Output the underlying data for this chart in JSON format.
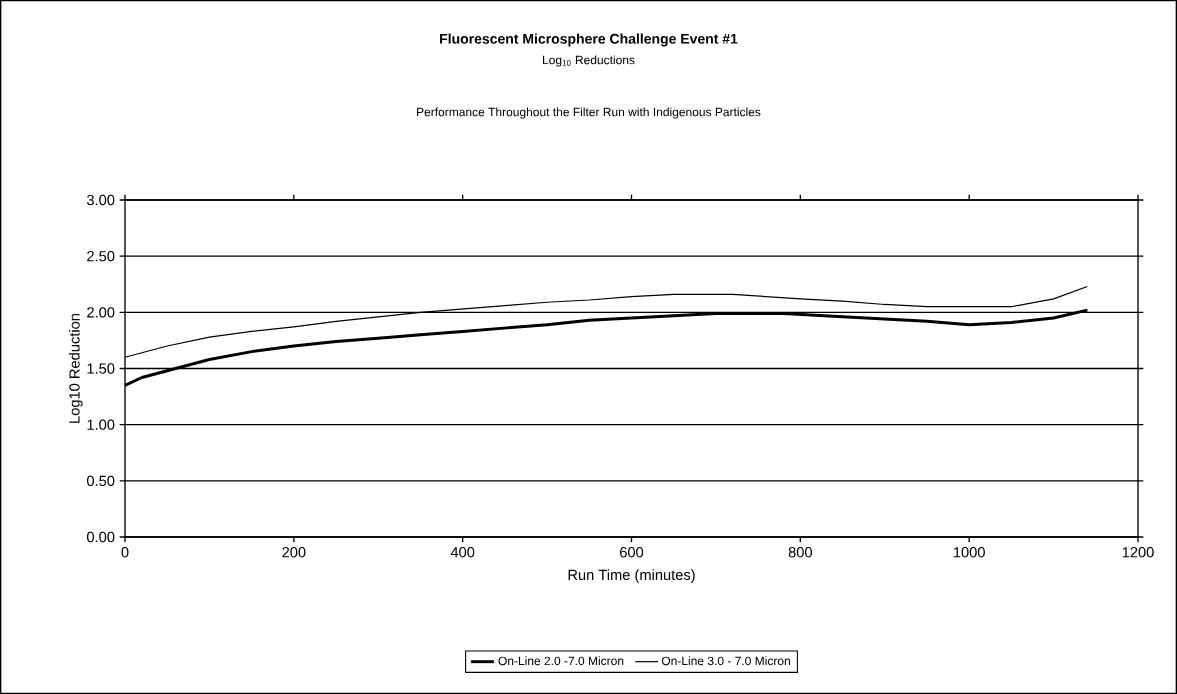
{
  "chart_data": {
    "type": "line",
    "title": "Fluorescent Microsphere Challenge Event #1",
    "subtitle": "Log$_{10}$ Reductions",
    "annotations": [
      "Performance Throughout the Filter Run with Indigenous Particles"
    ],
    "xlabel": "Run Time (minutes)",
    "ylabel": "Log10 Reduction",
    "series": [
      {
        "name": "On-Line 2.0 -7.0 Micron",
        "color": "#000000",
        "x": [
          0,
          20,
          50,
          100,
          150,
          200,
          250,
          300,
          350,
          400,
          450,
          500,
          550,
          600,
          650,
          700,
          780,
          850,
          900,
          950,
          1000,
          1050,
          1100,
          1140
        ],
        "values": [
          1.35,
          1.42,
          1.48,
          1.58,
          1.65,
          1.7,
          1.74,
          1.77,
          1.8,
          1.83,
          1.86,
          1.89,
          1.93,
          1.95,
          1.97,
          1.99,
          1.99,
          1.96,
          1.94,
          1.92,
          1.89,
          1.91,
          1.95,
          2.02
        ]
      },
      {
        "name": "On-Line 3.0 - 7.0 Micron",
        "color": "#000000",
        "x": [
          0,
          50,
          100,
          150,
          200,
          250,
          300,
          350,
          400,
          450,
          500,
          550,
          600,
          650,
          720,
          800,
          850,
          900,
          950,
          1050,
          1100,
          1140
        ],
        "values": [
          1.6,
          1.7,
          1.78,
          1.83,
          1.87,
          1.92,
          1.96,
          2.0,
          2.03,
          2.06,
          2.09,
          2.11,
          2.14,
          2.16,
          2.16,
          2.12,
          2.1,
          2.07,
          2.05,
          2.05,
          2.12,
          2.23
        ]
      }
    ],
    "xlim": [
      0,
      1200
    ],
    "xticks": [
      0,
      200,
      400,
      600,
      800,
      1000,
      1200
    ],
    "ylim": [
      0,
      3
    ],
    "yticks": [
      {
        "value": 0,
        "label": "0.00"
      },
      {
        "value": 0.5,
        "label": "0.50"
      },
      {
        "value": 1,
        "label": "1.00"
      },
      {
        "value": 1.5,
        "label": "1.50"
      },
      {
        "value": 2,
        "label": "2.00"
      },
      {
        "value": 2.5,
        "label": "2.50"
      },
      {
        "value": 3,
        "label": "3.00"
      }
    ],
    "grid": "y",
    "legend": "bottom",
    "marker": "none",
    "line_style": "solid"
  }
}
